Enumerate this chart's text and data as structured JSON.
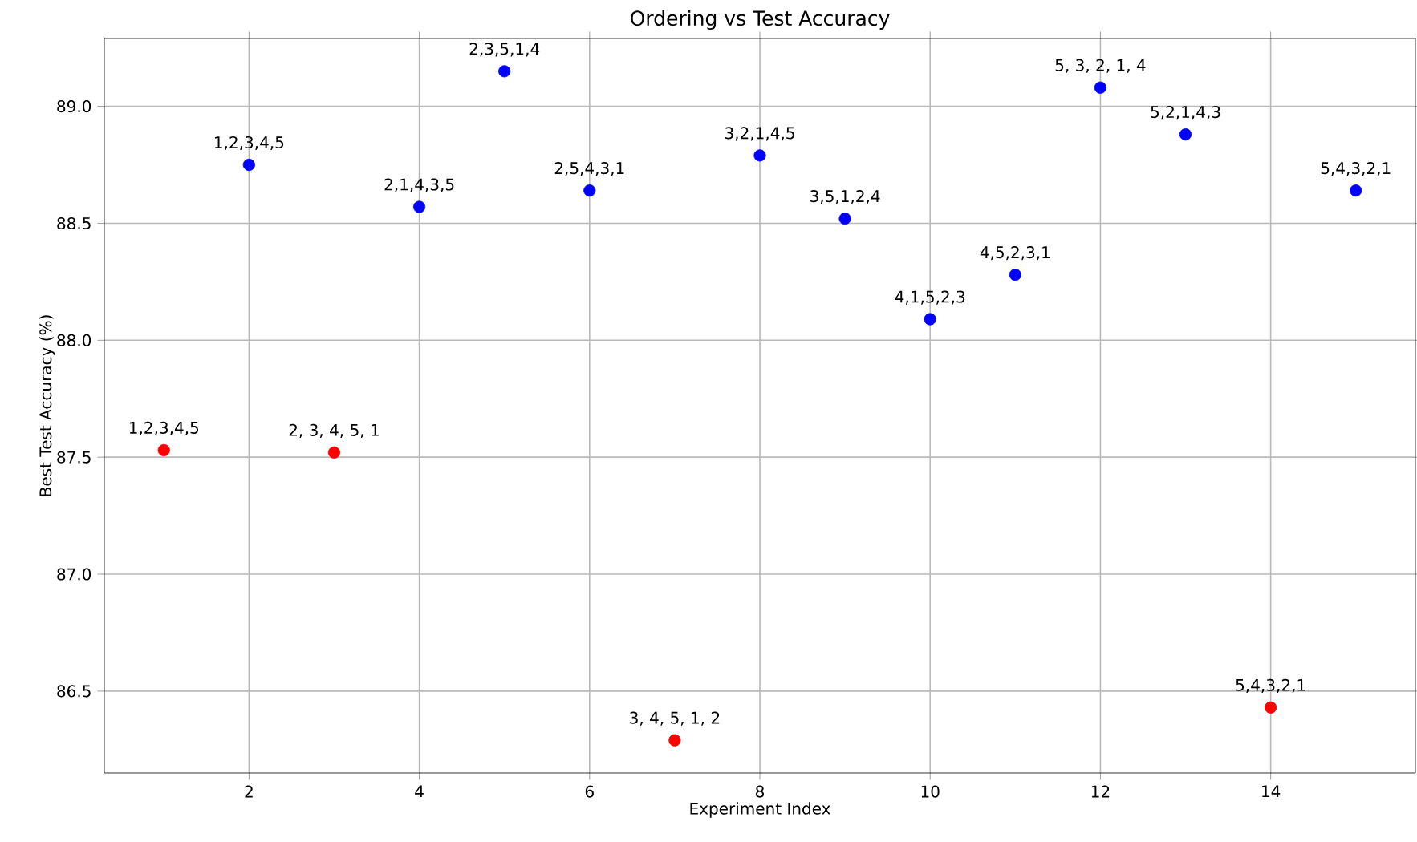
{
  "chart_data": {
    "type": "scatter",
    "title": "Ordering vs Test Accuracy",
    "xlabel": "Experiment Index",
    "ylabel": "Best Test Accuracy (%)",
    "series": [
      {
        "color": "#ff0000",
        "x": [
          1,
          3,
          7,
          14
        ],
        "values": [
          87.53,
          87.52,
          86.29,
          86.43
        ]
      },
      {
        "color": "#0000ff",
        "x": [
          2,
          4,
          5,
          6,
          8,
          9,
          10,
          11,
          12,
          13,
          15
        ],
        "values": [
          88.75,
          88.57,
          89.15,
          88.64,
          88.79,
          88.52,
          88.09,
          88.28,
          89.08,
          88.88,
          88.64
        ]
      }
    ],
    "annotations": [
      {
        "text": "1,2,3,4,5",
        "x": 1,
        "y": 87.53
      },
      {
        "text": "1,2,3,4,5",
        "x": 2,
        "y": 88.75
      },
      {
        "text": "2, 3, 4, 5, 1",
        "x": 3,
        "y": 87.52
      },
      {
        "text": "2,1,4,3,5",
        "x": 4,
        "y": 88.57
      },
      {
        "text": "2,3,5,1,4",
        "x": 5,
        "y": 89.15
      },
      {
        "text": "2,5,4,3,1",
        "x": 6,
        "y": 88.64
      },
      {
        "text": "3, 4, 5, 1, 2",
        "x": 7,
        "y": 86.29
      },
      {
        "text": "3,2,1,4,5",
        "x": 8,
        "y": 88.79
      },
      {
        "text": "3,5,1,2,4",
        "x": 9,
        "y": 88.52
      },
      {
        "text": "4,1,5,2,3",
        "x": 10,
        "y": 88.09
      },
      {
        "text": "4,5,2,3,1",
        "x": 11,
        "y": 88.28
      },
      {
        "text": "5, 3, 2, 1, 4",
        "x": 12,
        "y": 89.08
      },
      {
        "text": "5,2,1,4,3",
        "x": 13,
        "y": 88.88
      },
      {
        "text": "5,4,3,2,1",
        "x": 14,
        "y": 86.43
      },
      {
        "text": "5,4,3,2,1",
        "x": 15,
        "y": 88.64
      }
    ],
    "xlim": [
      0.3,
      15.7
    ],
    "ylim": [
      86.15,
      89.29
    ],
    "xticks": [
      2,
      4,
      6,
      8,
      10,
      12,
      14
    ],
    "yticks": [
      {
        "value": 86.5,
        "label": "86.5"
      },
      {
        "value": 87,
        "label": "87.0"
      },
      {
        "value": 87.5,
        "label": "87.5"
      },
      {
        "value": 88,
        "label": "88.0"
      },
      {
        "value": 88.5,
        "label": "88.5"
      },
      {
        "value": 89,
        "label": "89.0"
      }
    ],
    "grid": true,
    "marker": "circle"
  }
}
